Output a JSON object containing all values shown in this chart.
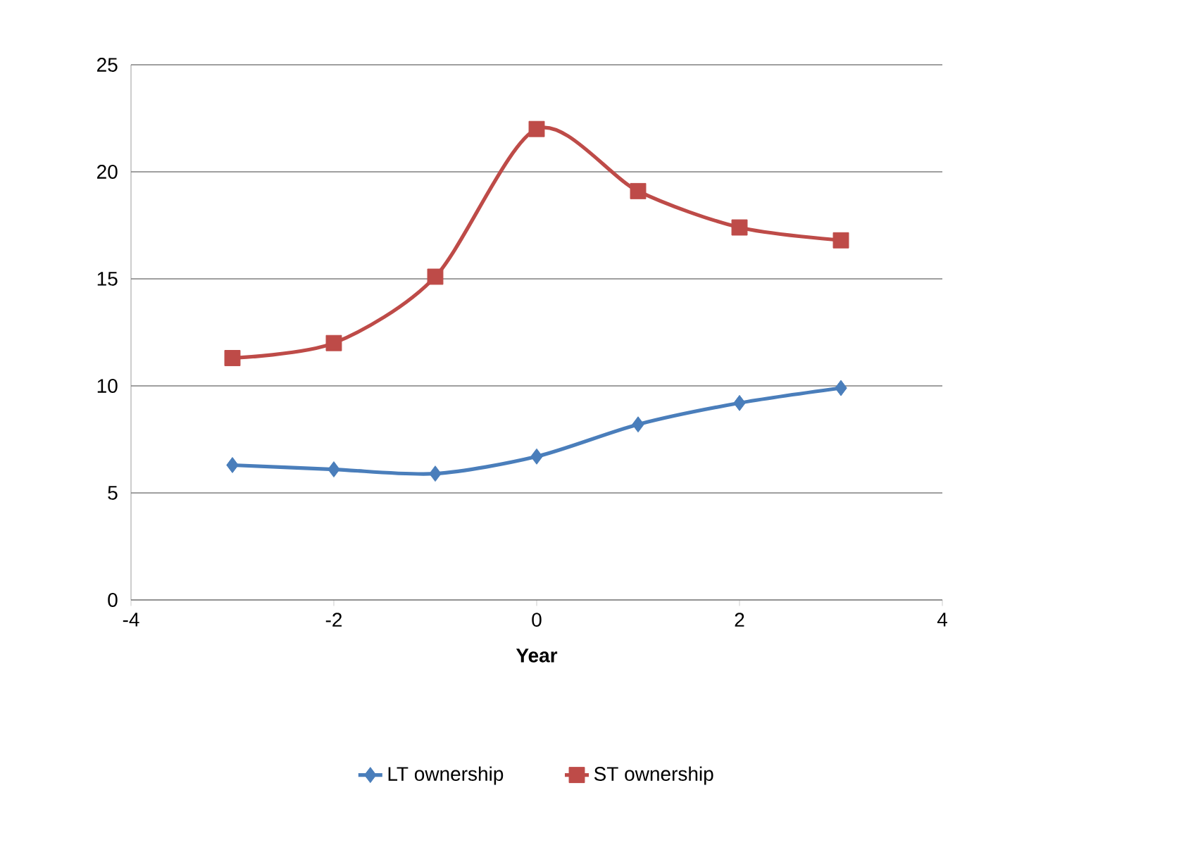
{
  "chart_data": {
    "type": "line",
    "xlabel": "Year",
    "x": [
      -3,
      -2,
      -1,
      0,
      1,
      2,
      3
    ],
    "series": [
      {
        "name": "LT ownership",
        "color": "#4a7ebb",
        "marker": "diamond",
        "values": [
          6.3,
          6.1,
          5.9,
          6.7,
          8.2,
          9.2,
          9.9
        ]
      },
      {
        "name": "ST ownership",
        "color": "#be4b48",
        "marker": "square",
        "values": [
          11.3,
          12.0,
          15.1,
          22.0,
          19.1,
          17.4,
          16.8
        ]
      }
    ],
    "xlim": [
      -4,
      4
    ],
    "xticks": [
      -4,
      -2,
      0,
      2,
      4
    ],
    "ylim": [
      0,
      25
    ],
    "yticks": [
      0,
      5,
      10,
      15,
      20,
      25
    ],
    "grid": "y",
    "legend": "bottom",
    "line_style": "solid"
  }
}
